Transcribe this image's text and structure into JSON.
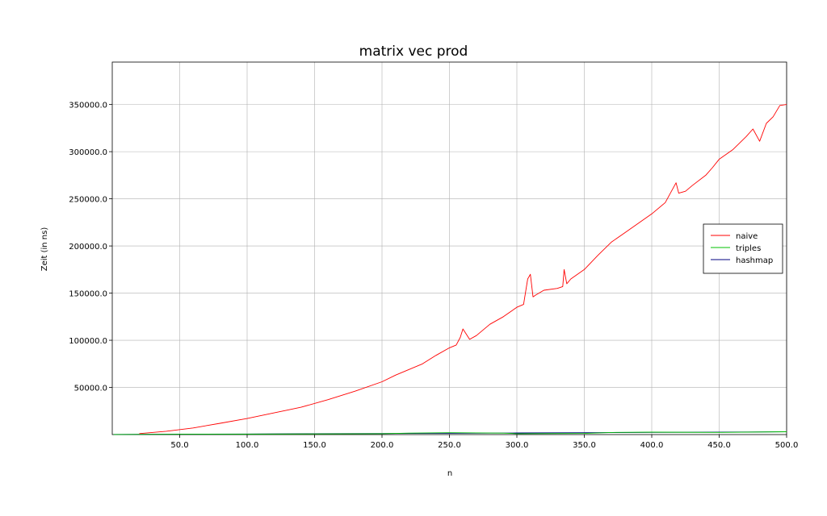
{
  "chart_data": {
    "type": "line",
    "title": "matrix vec prod",
    "xlabel": "n",
    "ylabel": "Zeit (in ns)",
    "xlim": [
      0,
      500
    ],
    "ylim": [
      0,
      395000
    ],
    "x_ticks": [
      50,
      100,
      150,
      200,
      250,
      300,
      350,
      400,
      450,
      500
    ],
    "x_tick_labels": [
      "50.0",
      "100.0",
      "150.0",
      "200.0",
      "250.0",
      "300.0",
      "350.0",
      "400.0",
      "450.0",
      "500.0"
    ],
    "y_ticks": [
      50000,
      100000,
      150000,
      200000,
      250000,
      300000,
      350000
    ],
    "y_tick_labels": [
      "50000.0",
      "100000.0",
      "150000.0",
      "200000.0",
      "250000.0",
      "300000.0",
      "350000.0"
    ],
    "grid": true,
    "legend_position": "right",
    "series": [
      {
        "name": "naive",
        "color": "#ff0000",
        "x": [
          20,
          40,
          60,
          80,
          100,
          120,
          140,
          160,
          180,
          200,
          210,
          220,
          230,
          240,
          250,
          255,
          258,
          260,
          265,
          270,
          280,
          290,
          300,
          305,
          308,
          310,
          312,
          314,
          320,
          330,
          334,
          335,
          337,
          340,
          350,
          360,
          370,
          380,
          390,
          400,
          410,
          418,
          420,
          425,
          430,
          440,
          445,
          450,
          460,
          470,
          475,
          480,
          485,
          490,
          495,
          500
        ],
        "values": [
          1000,
          3500,
          7000,
          12000,
          17000,
          23000,
          29000,
          37000,
          46000,
          56000,
          63000,
          69000,
          75000,
          84000,
          92000,
          95000,
          103000,
          112000,
          101000,
          105000,
          117000,
          125000,
          135000,
          138000,
          165000,
          170000,
          146000,
          148000,
          153000,
          155000,
          157000,
          175000,
          160000,
          165000,
          175000,
          190000,
          204000,
          214000,
          224000,
          234000,
          246000,
          267000,
          256000,
          258000,
          264000,
          275000,
          283000,
          292000,
          302000,
          316000,
          324000,
          311000,
          330000,
          337000,
          349000,
          350000
        ]
      },
      {
        "name": "triples",
        "color": "#00c000",
        "x": [
          1,
          50,
          100,
          150,
          200,
          220,
          250,
          290,
          300,
          350,
          370,
          400,
          450,
          500
        ],
        "values": [
          100,
          300,
          500,
          700,
          900,
          1500,
          2000,
          1500,
          900,
          1200,
          2200,
          2600,
          2300,
          3000
        ]
      },
      {
        "name": "hashmap",
        "color": "#000080",
        "x": [
          1,
          50,
          100,
          150,
          200,
          250,
          300,
          350,
          400,
          450,
          500
        ],
        "values": [
          200,
          400,
          600,
          900,
          1100,
          1400,
          1700,
          2000,
          2300,
          2600,
          2900
        ]
      }
    ]
  }
}
